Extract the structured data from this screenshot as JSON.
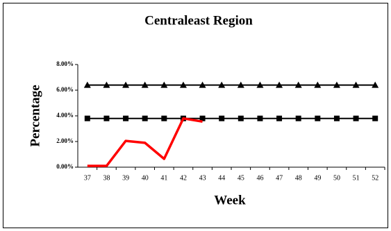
{
  "chart_data": {
    "type": "line",
    "title": "Centraleast Region",
    "x_label": "Week",
    "y_label": "Percentage",
    "categories": [
      "37",
      "38",
      "39",
      "40",
      "41",
      "42",
      "43",
      "44",
      "45",
      "46",
      "47",
      "48",
      "49",
      "50",
      "51",
      "52"
    ],
    "series": [
      {
        "color": "#000000",
        "marker": "triangle",
        "values": [
          6.4,
          6.4,
          6.4,
          6.4,
          6.4,
          6.4,
          6.4,
          6.4,
          6.4,
          6.4,
          6.4,
          6.4,
          6.4,
          6.4,
          6.4,
          6.4
        ]
      },
      {
        "color": "#000000",
        "marker": "square",
        "values": [
          3.8,
          3.8,
          3.8,
          3.8,
          3.8,
          3.8,
          3.8,
          3.8,
          3.8,
          3.8,
          3.8,
          3.8,
          3.8,
          3.8,
          3.8,
          3.8
        ]
      },
      {
        "color": "#ff0000",
        "marker": "none",
        "values": [
          0.1,
          0.1,
          2.05,
          1.9,
          0.65,
          3.8,
          3.55,
          null,
          null,
          null,
          null,
          null,
          null,
          null,
          null,
          null
        ]
      }
    ],
    "ylim": [
      0,
      8
    ],
    "yticks": [
      {
        "value": 0,
        "label": "0.00%"
      },
      {
        "value": 2,
        "label": "2.00%"
      },
      {
        "value": 4,
        "label": "4.00%"
      },
      {
        "value": 6,
        "label": "6.00%"
      },
      {
        "value": 8,
        "label": "8.00%"
      }
    ],
    "grid": false
  }
}
